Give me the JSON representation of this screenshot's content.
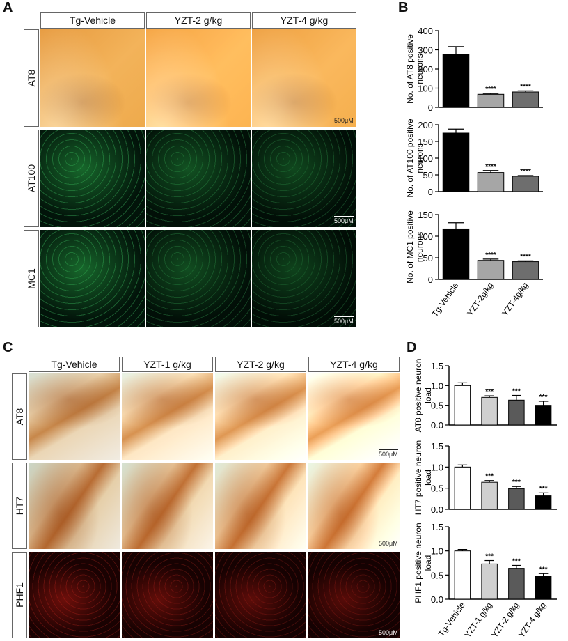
{
  "panel_letters": {
    "a": "A",
    "b": "B",
    "c": "C",
    "d": "D"
  },
  "panel_a": {
    "columns": [
      "Tg-Vehicle",
      "YZT-2 g/kg",
      "YZT-4 g/kg"
    ],
    "rows": [
      "AT8",
      "AT100",
      "MC1"
    ],
    "scale_label": "500μM"
  },
  "panel_c": {
    "columns": [
      "Tg-Vehicle",
      "YZT-1 g/kg",
      "YZT-2 g/kg",
      "YZT-4 g/kg"
    ],
    "rows": [
      "AT8",
      "HT7",
      "PHF1"
    ],
    "scale_label": "500μM"
  },
  "chart_data": [
    {
      "type": "bar",
      "panel": "B",
      "categories": [
        "Tg-Vehicle",
        "YZT-2g/kg",
        "YZT-4g/kg"
      ],
      "values": [
        275,
        68,
        80
      ],
      "errors": [
        42,
        4,
        6
      ],
      "sig": [
        "",
        "****",
        "****"
      ],
      "ylabel": "No. of AT8 positive neurons",
      "ylim": [
        0,
        400
      ],
      "yticks": [
        0,
        100,
        200,
        300,
        400
      ],
      "colors": [
        "#000000",
        "#a6a6a6",
        "#6e6e6e"
      ]
    },
    {
      "type": "bar",
      "panel": "B",
      "categories": [
        "Tg-Vehicle",
        "YZT-2g/kg",
        "YZT-4g/kg"
      ],
      "values": [
        175,
        57,
        46
      ],
      "errors": [
        12,
        6,
        2
      ],
      "sig": [
        "",
        "****",
        "****"
      ],
      "ylabel": "No. of AT100 positive neurons",
      "ylim": [
        0,
        200
      ],
      "yticks": [
        0,
        50,
        100,
        150,
        200
      ],
      "colors": [
        "#000000",
        "#a6a6a6",
        "#6e6e6e"
      ]
    },
    {
      "type": "bar",
      "panel": "B",
      "categories": [
        "Tg-Vehicle",
        "YZT-2g/kg",
        "YZT-4g/kg"
      ],
      "values": [
        117,
        44,
        41
      ],
      "errors": [
        14,
        3,
        2
      ],
      "sig": [
        "",
        "****",
        "****"
      ],
      "ylabel": "No. of MC1 positive neurons",
      "ylim": [
        0,
        150
      ],
      "yticks": [
        0,
        50,
        100,
        150
      ],
      "colors": [
        "#000000",
        "#a6a6a6",
        "#6e6e6e"
      ]
    },
    {
      "type": "bar",
      "panel": "D",
      "categories": [
        "Tg-Vehicle",
        "YZT-1 g/kg",
        "YZT-2 g/kg",
        "YZT-4 g/kg"
      ],
      "values": [
        1.0,
        0.7,
        0.63,
        0.5
      ],
      "errors": [
        0.07,
        0.04,
        0.12,
        0.1
      ],
      "sig": [
        "",
        "***",
        "***",
        "***"
      ],
      "ylabel": "AT8 positive neuron load",
      "ylim": [
        0,
        1.5
      ],
      "yticks": [
        0.0,
        0.5,
        1.0,
        1.5
      ],
      "colors": [
        "#ffffff",
        "#d0d0d0",
        "#5a5a5a",
        "#000000"
      ]
    },
    {
      "type": "bar",
      "panel": "D",
      "categories": [
        "Tg-Vehicle",
        "YZT-1 g/kg",
        "YZT-2 g/kg",
        "YZT-4 g/kg"
      ],
      "values": [
        1.0,
        0.64,
        0.49,
        0.32
      ],
      "errors": [
        0.05,
        0.04,
        0.05,
        0.07
      ],
      "sig": [
        "",
        "***",
        "***",
        "***"
      ],
      "ylabel": "HT7 positive neuron load",
      "ylim": [
        0,
        1.5
      ],
      "yticks": [
        0.0,
        0.5,
        1.0,
        1.5
      ],
      "colors": [
        "#ffffff",
        "#d0d0d0",
        "#5a5a5a",
        "#000000"
      ]
    },
    {
      "type": "bar",
      "panel": "D",
      "categories": [
        "Tg-Vehicle",
        "YZT-1 g/kg",
        "YZT-2 g/kg",
        "YZT-4 g/kg"
      ],
      "values": [
        1.0,
        0.73,
        0.64,
        0.48
      ],
      "errors": [
        0.03,
        0.07,
        0.06,
        0.05
      ],
      "sig": [
        "",
        "***",
        "***",
        "***"
      ],
      "ylabel": "PHF1 positive neuron load",
      "ylim": [
        0,
        1.5
      ],
      "yticks": [
        0.0,
        0.5,
        1.0,
        1.5
      ],
      "colors": [
        "#ffffff",
        "#d0d0d0",
        "#5a5a5a",
        "#000000"
      ]
    }
  ]
}
